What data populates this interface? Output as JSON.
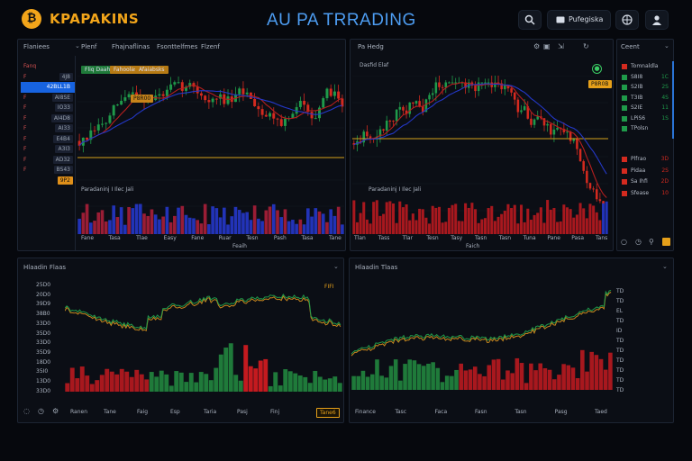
{
  "header": {
    "logo_glyph": "₿",
    "brand": "KPAPAKINS",
    "title": "AU PA TRRADING",
    "account_label": "Pufegiska"
  },
  "colors": {
    "up": "#1f9a4a",
    "down": "#d42a1f",
    "accent": "#f2a51a",
    "select": "#1763e0",
    "ma_blue": "#2438c8",
    "ma_red": "#b61f1f"
  },
  "left_panel": {
    "title": "Flaniees",
    "tabs": [
      "Plenf",
      "Fhajnaflinas",
      "Fsonttelfmes",
      "Flzenf"
    ],
    "watchlist": [
      {
        "sym": "Fanq",
        "price": ""
      },
      {
        "sym": "F",
        "price": "4J8"
      },
      {
        "sym": "",
        "price": "42BLL1B",
        "selected": true
      },
      {
        "sym": "F",
        "price": "AI8SE"
      },
      {
        "sym": "F",
        "price": "IO33"
      },
      {
        "sym": "F",
        "price": "AI4D8"
      },
      {
        "sym": "F",
        "price": "AI33"
      },
      {
        "sym": "F",
        "price": "E4B4"
      },
      {
        "sym": "F",
        "price": "A3I3"
      },
      {
        "sym": "F",
        "price": "AD32"
      },
      {
        "sym": "F",
        "price": "BS43"
      },
      {
        "sym": "",
        "price": "9P2",
        "last": true
      }
    ],
    "toolbar_buttons": [
      "Fliq Daahlaia",
      "Fahoolass",
      "Afaiabsks"
    ],
    "price_tag": "P8R00",
    "indicator_label": "Paradaninj I Ilec Jali",
    "x_labels": [
      "Fane",
      "Tasa",
      "Tlae",
      "Easy",
      "Fane",
      "Ruar",
      "Tesn",
      "Pash",
      "Tasa",
      "Tane"
    ],
    "x_sub": "Feaih"
  },
  "right_panel": {
    "title": "Pa Hedg",
    "inner_label": "Dasfid Elaf",
    "price_tag": "P8R0B",
    "indicator_label": "Paradaninj I Ilec Jali",
    "x_labels": [
      "Tlan",
      "Tass",
      "Tlar",
      "Tesn",
      "Tasy",
      "Tasn",
      "Tasn",
      "Tuna",
      "Pane",
      "Pasa",
      "Tans"
    ],
    "x_sub": "Faich"
  },
  "rail": {
    "title": "Ceent",
    "rows": [
      {
        "label": "Tomnaldla",
        "value": "",
        "color": "#d42a1f"
      },
      {
        "label": "S8I8",
        "value": "1C",
        "color": "#1f9a4a"
      },
      {
        "label": "S2IB",
        "value": "2S",
        "color": "#1f9a4a"
      },
      {
        "label": "T3IB",
        "value": "4S",
        "color": "#1f9a4a"
      },
      {
        "label": "S2IE",
        "value": "11",
        "color": "#1f9a4a"
      },
      {
        "label": "LPiS6",
        "value": "1S",
        "color": "#1f9a4a"
      },
      {
        "label": "TPolsn",
        "value": "",
        "color": "#1f9a4a"
      },
      {
        "label": "Plfrao",
        "value": "3D",
        "color": "#d42a1f"
      },
      {
        "label": "Pidaa",
        "value": "2S",
        "color": "#d42a1f"
      },
      {
        "label": "Sa Ihfi",
        "value": "2D",
        "color": "#d42a1f"
      },
      {
        "label": "Sfease",
        "value": "10",
        "color": "#d42a1f"
      }
    ]
  },
  "bottom_left": {
    "title": "Hlaadin Flaas",
    "price_marker": "FIFI",
    "y_labels": [
      "25D0",
      "20D0",
      "39D9",
      "38B0",
      "33D0",
      "35D0",
      "33D0",
      "35D9",
      "18D0",
      "35I0",
      "13D0",
      "33D0"
    ],
    "x_labels": [
      "Ranen",
      "Tane",
      "Faig",
      "Esp",
      "Taria",
      "Pasj",
      "Finj"
    ],
    "highlight_tab": "Tane6"
  },
  "bottom_right": {
    "title": "Hlaadin Tlaas",
    "y_labels": [
      "TD",
      "TD",
      "EL",
      "TD",
      "ID",
      "TD",
      "TD",
      "TD",
      "TD",
      "TD",
      "TD"
    ],
    "x_labels": [
      "Finance",
      "Tasc",
      "Faca",
      "Fasn",
      "Tasn",
      "Pasg",
      "Taed"
    ]
  }
}
